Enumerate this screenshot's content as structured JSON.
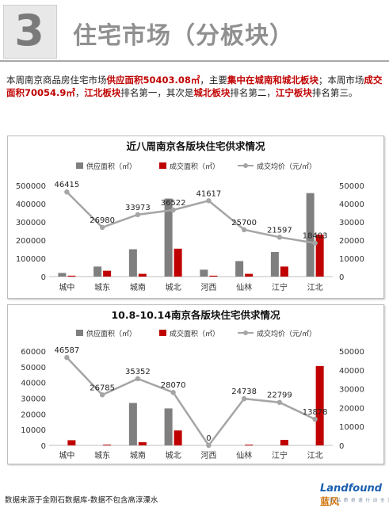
{
  "header": {
    "number": "3",
    "title": "住宅市场（分板块）"
  },
  "summary": {
    "p1": "本周南京商品房住宅市场",
    "h1": "供应面积50403.08㎡",
    "p2": "，主要",
    "h2": "集中在城南和城北板块",
    "p3": "；本周市场",
    "h3": "成交面积70054.9㎡",
    "p4": "，",
    "h4": "江北板块",
    "p5": "排名第一，其次是",
    "h5": "城北板块",
    "p6": "排名第二，",
    "h6": "江宁板块",
    "p7": "排名第三。"
  },
  "colors": {
    "supply": "#7f7f7f",
    "deal": "#c00000",
    "price": "#a5a5a5"
  },
  "chart_data": [
    {
      "type": "bar",
      "title": "近八周南京各版块住宅供求情况",
      "categories": [
        "城中",
        "城东",
        "城南",
        "城北",
        "河西",
        "仙林",
        "江宁",
        "江北"
      ],
      "series": [
        {
          "name": "供应面积（㎡）",
          "type": "bar",
          "axis": "left",
          "values": [
            20000,
            55000,
            150000,
            428000,
            38000,
            85000,
            135000,
            458000
          ]
        },
        {
          "name": "成交面积（㎡）",
          "type": "bar",
          "axis": "left",
          "values": [
            5000,
            32000,
            15000,
            153000,
            5000,
            15000,
            55000,
            230000
          ]
        },
        {
          "name": "成交均价（元/㎡）",
          "type": "line",
          "axis": "right",
          "values": [
            46415,
            26980,
            33973,
            36522,
            41617,
            25700,
            21597,
            18403
          ]
        }
      ],
      "left_axis": {
        "min": 0,
        "max": 500000,
        "ticks": [
          0,
          100000,
          200000,
          300000,
          400000,
          500000
        ]
      },
      "right_axis": {
        "min": 0,
        "max": 50000,
        "ticks": [
          0,
          10000,
          20000,
          30000,
          40000,
          50000
        ]
      },
      "legend": "top"
    },
    {
      "type": "bar",
      "title": "10.8-10.14南京各版块住宅供求情况",
      "categories": [
        "城中",
        "城东",
        "城南",
        "城北",
        "河西",
        "仙林",
        "江宁",
        "江北"
      ],
      "series": [
        {
          "name": "供应面积（㎡）",
          "type": "bar",
          "axis": "left",
          "values": [
            0,
            0,
            27000,
            23500,
            0,
            0,
            0,
            0
          ]
        },
        {
          "name": "成交面积（㎡）",
          "type": "bar",
          "axis": "left",
          "values": [
            3300,
            500,
            2000,
            9500,
            0,
            500,
            3500,
            50500
          ]
        },
        {
          "name": "成交均价（元/㎡）",
          "type": "line",
          "axis": "right",
          "values": [
            46587,
            26785,
            35352,
            28070,
            0,
            24738,
            22799,
            13878
          ]
        }
      ],
      "left_axis": {
        "min": 0,
        "max": 60000,
        "ticks": [
          0,
          10000,
          20000,
          30000,
          40000,
          50000,
          60000
        ]
      },
      "right_axis": {
        "min": 0,
        "max": 50000,
        "ticks": [
          0,
          10000,
          20000,
          30000,
          40000,
          50000
        ]
      },
      "legend": "top"
    }
  ],
  "footer": {
    "source": "数据来源于金刚石数据库-数据不包含高淳溧水",
    "logo_en": "Landfound",
    "logo_cn": "蓝风",
    "logo_tagline": "一 流 品 质 奇 速 行 动 全 面 服 务"
  }
}
